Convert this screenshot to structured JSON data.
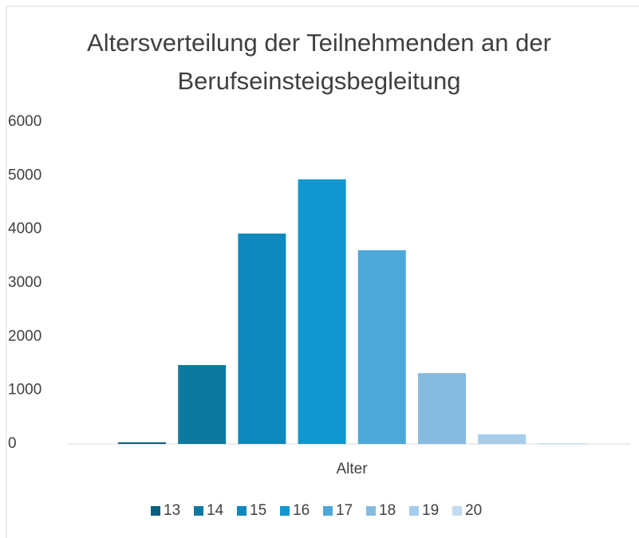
{
  "chart_data": {
    "type": "bar",
    "title": "Altersverteilung der Teilnehmenden an der Berufseinsteigsbegleitung",
    "x_label": "Alter",
    "series": [
      {
        "name": "13",
        "color": "#0b5f80",
        "values": [
          30
        ]
      },
      {
        "name": "14",
        "color": "#0d79a0",
        "values": [
          1470
        ]
      },
      {
        "name": "15",
        "color": "#0e88bd",
        "values": [
          3920
        ]
      },
      {
        "name": "16",
        "color": "#1197cf",
        "values": [
          4930
        ]
      },
      {
        "name": "17",
        "color": "#4da8da",
        "values": [
          3610
        ]
      },
      {
        "name": "18",
        "color": "#86bbe1",
        "values": [
          1320
        ]
      },
      {
        "name": "19",
        "color": "#a8cdea",
        "values": [
          180
        ]
      },
      {
        "name": "20",
        "color": "#c3dcef",
        "values": [
          15
        ]
      }
    ],
    "ylim": [
      0,
      6000
    ],
    "yticks": [
      0,
      1000,
      2000,
      3000,
      4000,
      5000,
      6000
    ],
    "legend": "bottom"
  }
}
